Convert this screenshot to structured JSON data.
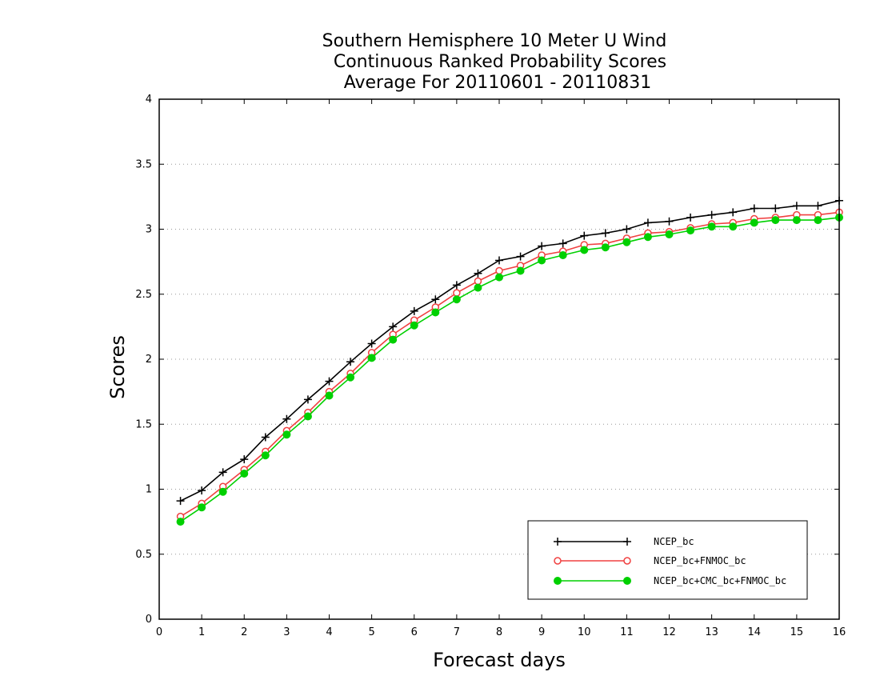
{
  "chart_data": {
    "type": "line",
    "title_lines": [
      "Southern Hemisphere 10 Meter U Wind",
      "Continuous Ranked Probability Scores",
      "Average For 20110601 - 20110831"
    ],
    "xlabel": "Forecast days",
    "ylabel": "Scores",
    "xlim": [
      0,
      16
    ],
    "ylim": [
      0,
      4
    ],
    "xticks": [
      "0",
      "1",
      "2",
      "3",
      "4",
      "5",
      "6",
      "7",
      "8",
      "9",
      "10",
      "11",
      "12",
      "13",
      "14",
      "15",
      "16"
    ],
    "yticks": [
      "0",
      "0.5",
      "1",
      "1.5",
      "2",
      "2.5",
      "3",
      "3.5",
      "4"
    ],
    "grid": "horizontal dotted",
    "legend_position": "bottom-right",
    "x": [
      0.5,
      1,
      1.5,
      2,
      2.5,
      3,
      3.5,
      4,
      4.5,
      5,
      5.5,
      6,
      6.5,
      7,
      7.5,
      8,
      8.5,
      9,
      9.5,
      10,
      10.5,
      11,
      11.5,
      12,
      12.5,
      13,
      13.5,
      14,
      14.5,
      15,
      15.5,
      16
    ],
    "series": [
      {
        "name": "NCEP_bc",
        "color": "#000000",
        "marker": "plus",
        "values": [
          0.91,
          0.99,
          1.13,
          1.23,
          1.4,
          1.54,
          1.69,
          1.83,
          1.98,
          2.12,
          2.25,
          2.37,
          2.46,
          2.57,
          2.66,
          2.76,
          2.79,
          2.87,
          2.89,
          2.95,
          2.97,
          3.0,
          3.05,
          3.06,
          3.09,
          3.11,
          3.13,
          3.16,
          3.16,
          3.18,
          3.18,
          3.22
        ]
      },
      {
        "name": "NCEP_bc+FNMOC_bc",
        "color": "#f04040",
        "marker": "open-circle",
        "values": [
          0.79,
          0.89,
          1.02,
          1.15,
          1.29,
          1.45,
          1.59,
          1.75,
          1.89,
          2.05,
          2.19,
          2.3,
          2.4,
          2.51,
          2.6,
          2.68,
          2.72,
          2.8,
          2.83,
          2.88,
          2.89,
          2.93,
          2.97,
          2.98,
          3.01,
          3.04,
          3.05,
          3.08,
          3.09,
          3.11,
          3.11,
          3.13
        ]
      },
      {
        "name": "NCEP_bc+CMC_bc+FNMOC_bc",
        "color": "#00d000",
        "marker": "filled-circle",
        "values": [
          0.75,
          0.86,
          0.98,
          1.12,
          1.26,
          1.42,
          1.56,
          1.72,
          1.86,
          2.01,
          2.15,
          2.26,
          2.36,
          2.46,
          2.55,
          2.63,
          2.68,
          2.76,
          2.8,
          2.84,
          2.86,
          2.9,
          2.94,
          2.96,
          2.99,
          3.02,
          3.02,
          3.05,
          3.07,
          3.07,
          3.07,
          3.09
        ]
      }
    ]
  }
}
